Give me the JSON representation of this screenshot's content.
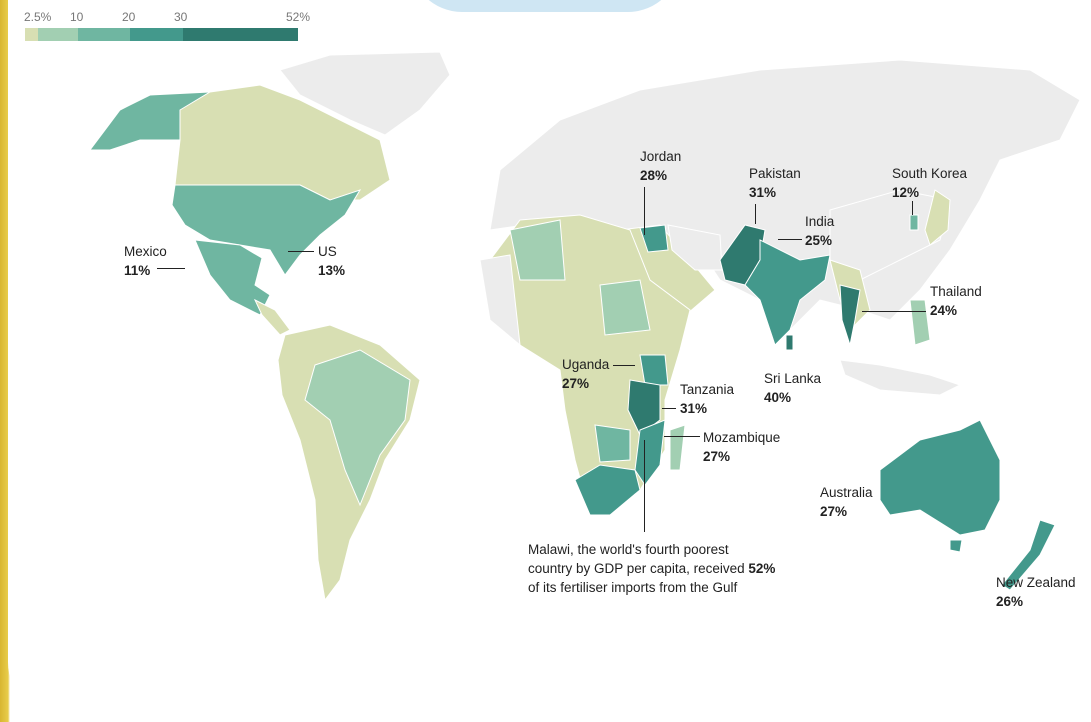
{
  "legend": {
    "ticks": [
      "2.5%",
      "10",
      "20",
      "30",
      "52%"
    ],
    "bins": [
      {
        "from": 2.5,
        "to": 5,
        "color": "#d8dfb3"
      },
      {
        "from": 5,
        "to": 10,
        "color": "#a2cfb2"
      },
      {
        "from": 10,
        "to": 20,
        "color": "#6fb6a1"
      },
      {
        "from": 20,
        "to": 30,
        "color": "#43998c"
      },
      {
        "from": 30,
        "to": 52,
        "color": "#2f7a6f"
      }
    ],
    "no_data_color": "#ececec"
  },
  "labels": {
    "mexico": {
      "name": "Mexico",
      "value": "11%"
    },
    "us": {
      "name": "US",
      "value": "13%"
    },
    "jordan": {
      "name": "Jordan",
      "value": "28%"
    },
    "pakistan": {
      "name": "Pakistan",
      "value": "31%"
    },
    "india": {
      "name": "India",
      "value": "25%"
    },
    "south_korea": {
      "name": "South Korea",
      "value": "12%"
    },
    "thailand": {
      "name": "Thailand",
      "value": "24%"
    },
    "sri_lanka": {
      "name": "Sri Lanka",
      "value": "40%"
    },
    "uganda": {
      "name": "Uganda",
      "value": "27%"
    },
    "tanzania": {
      "name": "Tanzania",
      "value": "31%"
    },
    "mozambique": {
      "name": "Mozambique",
      "value": "27%"
    },
    "australia": {
      "name": "Australia",
      "value": "27%"
    },
    "new_zealand": {
      "name": "New Zealand",
      "value": "26%"
    },
    "malawi": {
      "line1": "Malawi, the world's fourth poorest",
      "line2a": "country by GDP per capita, received ",
      "value": "52%",
      "line3": "of its fertiliser imports from the Gulf"
    }
  }
}
